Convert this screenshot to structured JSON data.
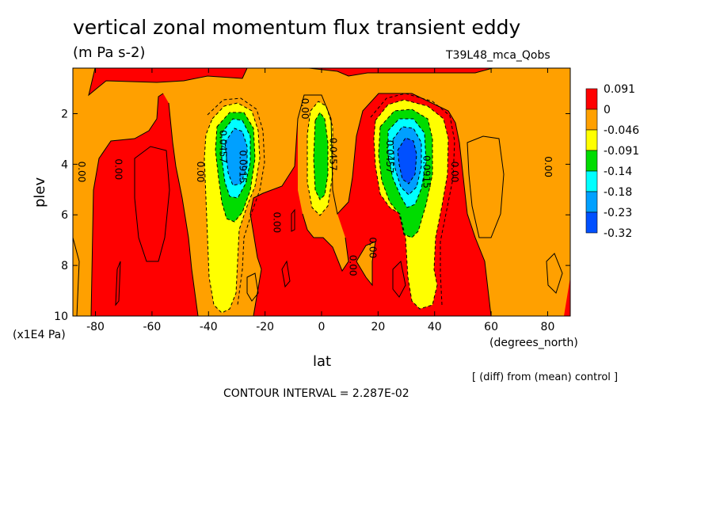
{
  "chart_data": {
    "type": "heatmap",
    "title": "vertical zonal momentum flux transient eddy",
    "units": "(m Pa s-2)",
    "run_name": "T39L48_mca_Qobs",
    "xlabel": "lat",
    "x_unit": "(degrees_north)",
    "ylabel": "plev",
    "y_unit": "(x1E4 Pa)",
    "xlim": [
      -88,
      88
    ],
    "ylim": [
      10,
      0.2
    ],
    "x_ticks": [
      "-80",
      "-60",
      "-40",
      "-20",
      "0",
      "20",
      "40",
      "60",
      "80"
    ],
    "y_ticks": [
      "2",
      "4",
      "6",
      "8",
      "10"
    ],
    "note": "[ (diff) from (mean) control ]",
    "contour_interval": "CONTOUR INTERVAL = 2.287E-02",
    "legend": {
      "placement": "right",
      "levels": [
        "0.091",
        "0",
        "-0.046",
        "-0.091",
        "-0.14",
        "-0.18",
        "-0.23",
        "-0.32"
      ],
      "colors": [
        "#ff0000",
        "#ffa000",
        "#ffff00",
        "#00dc00",
        "#00ffff",
        "#00a0ff",
        "#0050ff"
      ]
    },
    "contour_labels": [
      {
        "text": "0.00",
        "lat": -86,
        "p": 4.3
      },
      {
        "text": "0.00",
        "lat": -73,
        "p": 4.2
      },
      {
        "text": "0.00",
        "lat": -44,
        "p": 4.3
      },
      {
        "text": "0.0457",
        "lat": -36,
        "p": 3.3
      },
      {
        "text": "0.0915",
        "lat": -29,
        "p": 4.1
      },
      {
        "text": "0.00",
        "lat": -17,
        "p": 6.3
      },
      {
        "text": "0.00",
        "lat": -7,
        "p": 1.8
      },
      {
        "text": "0.0457",
        "lat": 3,
        "p": 3.6
      },
      {
        "text": "0.00",
        "lat": 10,
        "p": 8.0
      },
      {
        "text": "0.00",
        "lat": 17,
        "p": 7.3
      },
      {
        "text": "0.0457",
        "lat": 23,
        "p": 3.7
      },
      {
        "text": "0.0915",
        "lat": 36,
        "p": 4.3
      },
      {
        "text": "0.00",
        "lat": 46,
        "p": 4.3
      },
      {
        "text": "0.00",
        "lat": 79,
        "p": 4.1
      }
    ]
  }
}
